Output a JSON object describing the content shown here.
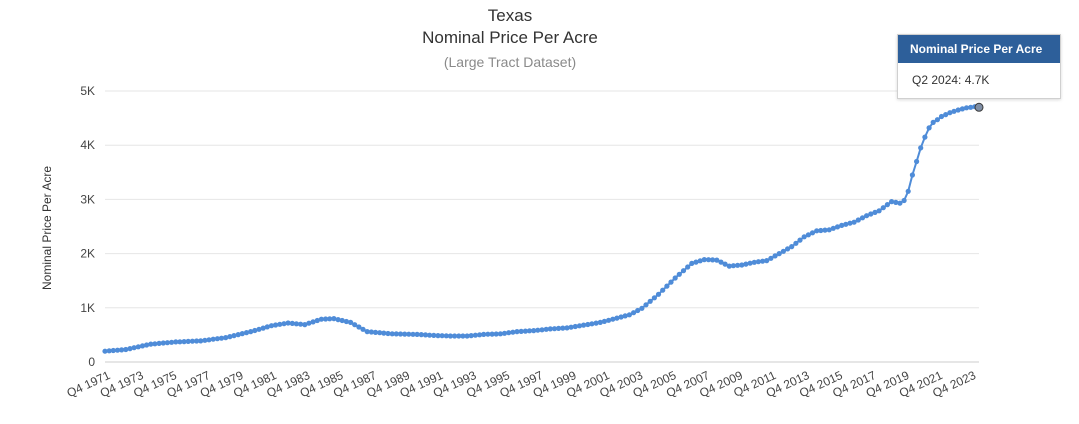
{
  "chart_data": {
    "type": "line",
    "title": "Texas",
    "subtitle_line": "Nominal Price Per Acre",
    "subtitle": "(Large Tract Dataset)",
    "xlabel": "",
    "ylabel": "Nominal Price Per Acre",
    "ylim": [
      0,
      5000
    ],
    "yticks": [
      0,
      1000,
      2000,
      3000,
      4000,
      5000
    ],
    "ytick_labels": [
      "0",
      "1K",
      "2K",
      "3K",
      "4K",
      "5K"
    ],
    "xtick_labels": [
      "Q4 1971",
      "Q4 1973",
      "Q4 1975",
      "Q4 1977",
      "Q4 1979",
      "Q4 1981",
      "Q4 1983",
      "Q4 1985",
      "Q4 1987",
      "Q4 1989",
      "Q4 1991",
      "Q4 1993",
      "Q4 1995",
      "Q4 1997",
      "Q4 1999",
      "Q4 2001",
      "Q4 2003",
      "Q4 2005",
      "Q4 2007",
      "Q4 2009",
      "Q4 2011",
      "Q4 2013",
      "Q4 2015",
      "Q4 2017",
      "Q4 2019",
      "Q4 2021",
      "Q4 2023"
    ],
    "grid": true,
    "legend": "none",
    "series": [
      {
        "color": "#4f8cd8",
        "x": [
          1971.75,
          1973.0,
          1974.5,
          1976.0,
          1977.5,
          1979.0,
          1980.5,
          1981.75,
          1982.75,
          1983.75,
          1984.75,
          1985.5,
          1986.5,
          1987.5,
          1989.0,
          1990.5,
          1991.5,
          1992.5,
          1993.5,
          1994.5,
          1995.5,
          1996.5,
          1997.5,
          1998.5,
          1999.5,
          2000.5,
          2001.5,
          2002.5,
          2003.25,
          2004.0,
          2005.0,
          2006.0,
          2007.0,
          2007.75,
          2008.5,
          2009.25,
          2010.0,
          2010.75,
          2011.5,
          2012.25,
          2013.0,
          2013.75,
          2014.5,
          2015.25,
          2016.0,
          2016.75,
          2017.5,
          2018.25,
          2019.0,
          2019.5,
          2019.75,
          2020.0,
          2020.25,
          2020.5,
          2020.75,
          2021.0,
          2021.25,
          2021.5,
          2021.75,
          2022.0,
          2022.5,
          2023.0,
          2023.5,
          2024.0,
          2024.25
        ],
        "y": [
          200,
          230,
          330,
          370,
          390,
          450,
          560,
          670,
          720,
          690,
          790,
          800,
          730,
          560,
          520,
          510,
          490,
          480,
          480,
          510,
          520,
          560,
          580,
          610,
          630,
          680,
          730,
          810,
          870,
          990,
          1250,
          1550,
          1820,
          1890,
          1880,
          1770,
          1790,
          1840,
          1870,
          2000,
          2130,
          2310,
          2420,
          2440,
          2520,
          2580,
          2700,
          2790,
          2960,
          2930,
          2980,
          3150,
          3450,
          3700,
          3950,
          4150,
          4320,
          4420,
          4470,
          4530,
          4600,
          4650,
          4690,
          4710,
          4700
        ]
      }
    ]
  },
  "tooltip": {
    "header": "Nominal Price Per Acre",
    "body": "Q2 2024: 4.7K"
  }
}
